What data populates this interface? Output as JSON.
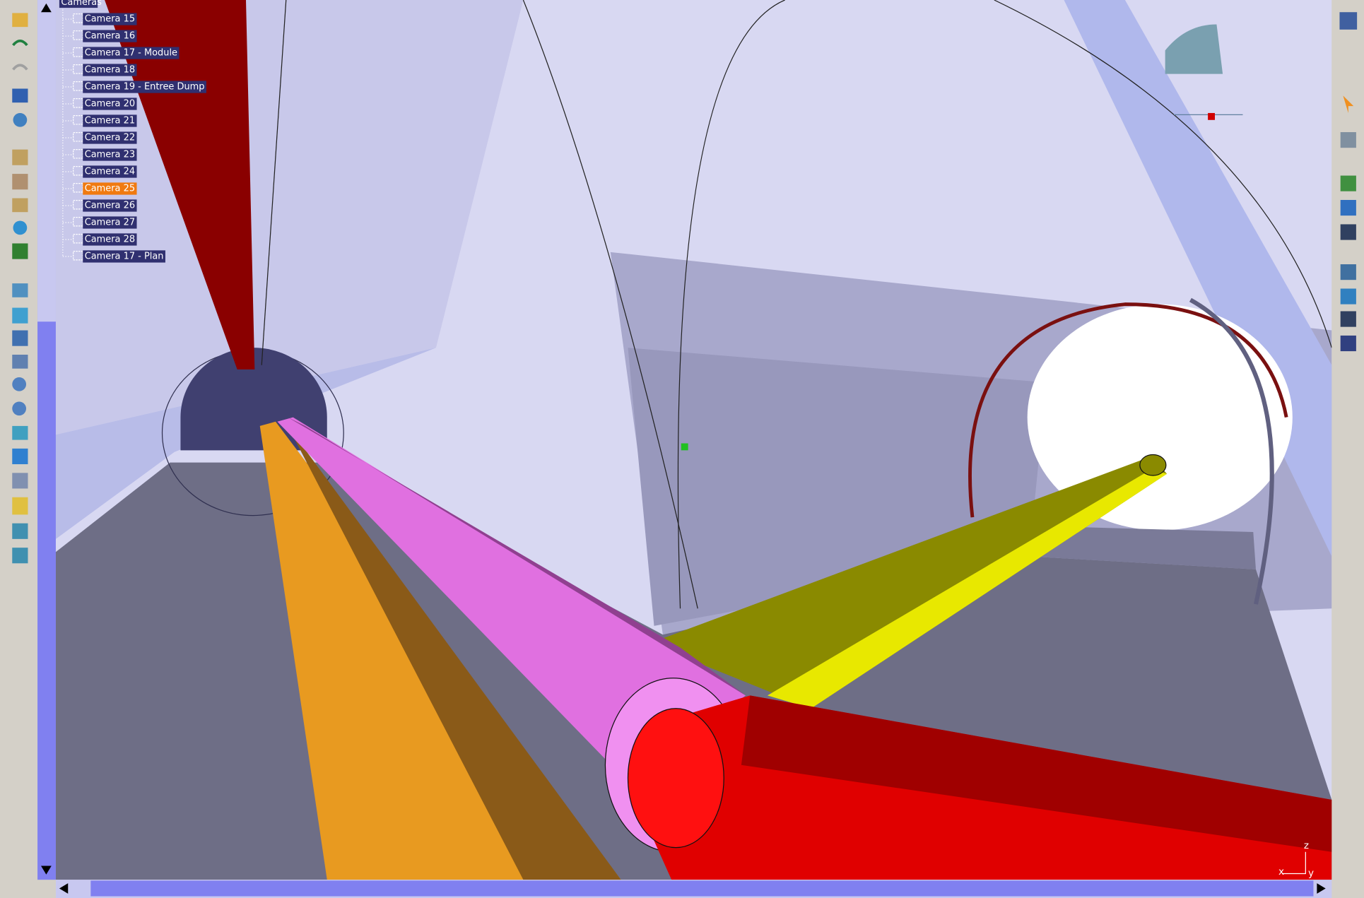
{
  "tree": {
    "root": "Cameras",
    "items": [
      "Camera 15",
      "Camera 16",
      "Camera 17 - Module",
      "Camera 18",
      "Camera 19 - Entree Dump",
      "Camera 20",
      "Camera 21",
      "Camera 22",
      "Camera 23",
      "Camera 24",
      "Camera 25",
      "Camera 26",
      "Camera 27",
      "Camera 28",
      "Camera 17 - Plan"
    ],
    "selected": "Camera 25"
  },
  "compass": {
    "z": "z",
    "x": "x",
    "y": "y"
  }
}
